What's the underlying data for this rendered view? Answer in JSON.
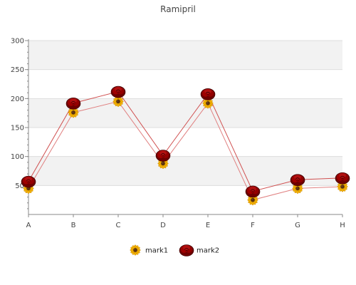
{
  "chart_data": {
    "type": "line",
    "title": "Ramipril",
    "xlabel": "",
    "ylabel": "",
    "categories": [
      "A",
      "B",
      "C",
      "D",
      "E",
      "F",
      "G",
      "H"
    ],
    "ylim": [
      0,
      300
    ],
    "yticks": [
      50,
      100,
      150,
      200,
      250,
      300
    ],
    "grid": true,
    "legend_position": "bottom",
    "series": [
      {
        "name": "mark1",
        "values": [
          45,
          176,
          195,
          88,
          192,
          25,
          45,
          48
        ],
        "line_color": "#e08080",
        "marker": "sunflower"
      },
      {
        "name": "mark2",
        "values": [
          57,
          192,
          212,
          102,
          208,
          40,
          60,
          63
        ],
        "line_color": "#d05050",
        "marker": "rose"
      }
    ],
    "colors": {
      "band": "#f2f2f2",
      "gridline": "#dddddd",
      "axis": "#888888"
    }
  }
}
